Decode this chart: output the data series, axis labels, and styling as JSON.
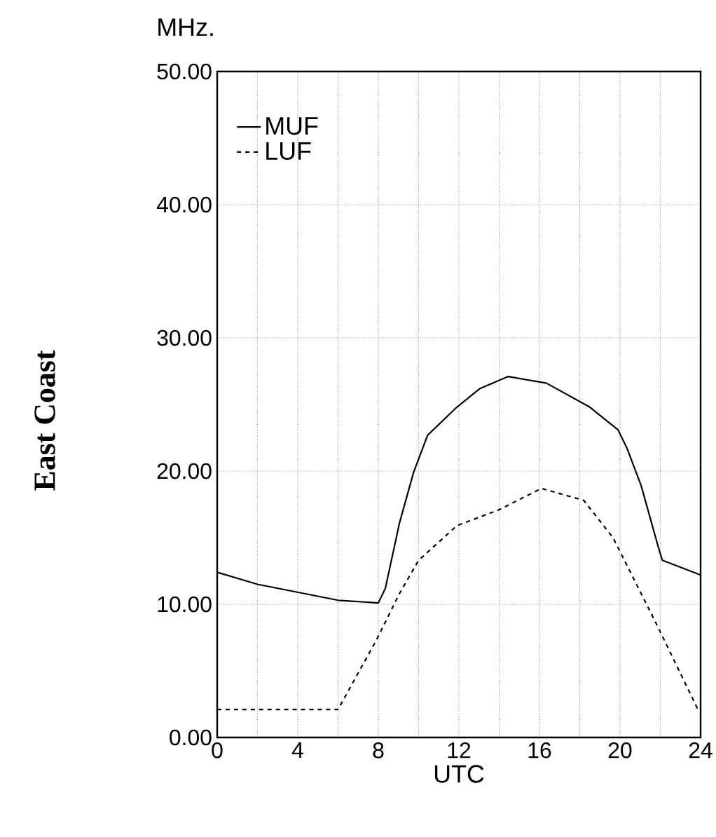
{
  "chart_data": {
    "type": "line",
    "ylabel": "MHz.",
    "xlabel": "UTC",
    "annotations": [
      "East Coast"
    ],
    "xlim": [
      0,
      24
    ],
    "ylim": [
      0,
      50
    ],
    "xticks": [
      0,
      {
        "value": 2,
        "label": null
      },
      4,
      {
        "value": 6,
        "label": null
      },
      8,
      {
        "value": 10,
        "label": null
      },
      12,
      {
        "value": 14,
        "label": null
      },
      16,
      {
        "value": 18,
        "label": null
      },
      20,
      {
        "value": 22,
        "label": null
      },
      24
    ],
    "yticks": [
      {
        "value": 0,
        "label": "0.00"
      },
      {
        "value": 10,
        "label": "10.00"
      },
      {
        "value": 20,
        "label": "20.00"
      },
      {
        "value": 30,
        "label": "30.00"
      },
      {
        "value": 40,
        "label": "40.00"
      },
      {
        "value": 50,
        "label": "50.00"
      }
    ],
    "grid": true,
    "legend": "top left",
    "series": [
      {
        "name": "MUF",
        "color": "#000000",
        "line_style": "solid",
        "x": [
          0,
          2,
          4,
          6,
          8,
          8.35,
          9.05,
          9.75,
          10.45,
          11.9,
          13.05,
          14.45,
          16.35,
          18.5,
          19.9,
          20.35,
          21.05,
          21.9,
          22.1,
          24
        ],
        "values": [
          12.4,
          11.5,
          10.9,
          10.3,
          10.1,
          11.2,
          16.1,
          19.9,
          22.7,
          24.8,
          26.2,
          27.1,
          26.6,
          24.8,
          23.1,
          21.7,
          18.9,
          14.3,
          13.3,
          12.2
        ]
      },
      {
        "name": "LUF",
        "color": "#000000",
        "line_style": "dashed",
        "x": [
          0,
          6,
          7.9,
          9.05,
          10,
          11.9,
          14,
          16.1,
          18.2,
          19.65,
          20.35,
          21.75,
          23.9
        ],
        "values": [
          2.1,
          2.1,
          7.3,
          10.8,
          13.3,
          15.9,
          17.1,
          18.7,
          17.8,
          15.0,
          12.9,
          8.7,
          2.0
        ]
      }
    ]
  }
}
